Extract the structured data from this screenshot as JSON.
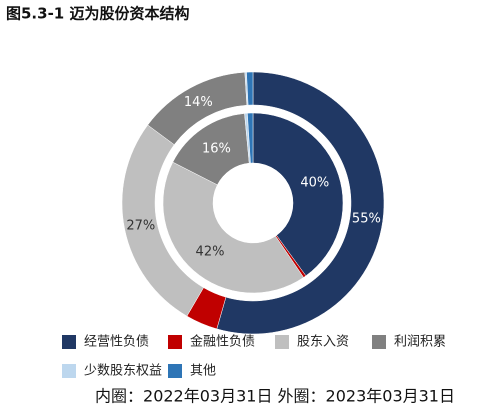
{
  "chart_data": {
    "type": "donut",
    "title": "图5.3-1 迈为股份资本结构",
    "categories": [
      "经营性负债",
      "金融性负债",
      "股东入资",
      "利润积累",
      "少数股东权益",
      "其他"
    ],
    "colors": [
      "#203864",
      "#c00000",
      "#bfbfbf",
      "#808080",
      "#bdd7ee",
      "#2e75b6"
    ],
    "series": [
      {
        "values": [
          40,
          0.5,
          42,
          16,
          0.5,
          1
        ],
        "value_labels": [
          "40%",
          null,
          "42%",
          "16%",
          null,
          null
        ]
      },
      {
        "values": [
          55,
          4,
          27,
          14,
          0.2,
          0.8
        ],
        "value_labels": [
          "55%",
          null,
          "27%",
          "14%",
          null,
          null
        ]
      }
    ],
    "caption": "内圈：2022年03月31日 外圈：2023年03月31日"
  }
}
